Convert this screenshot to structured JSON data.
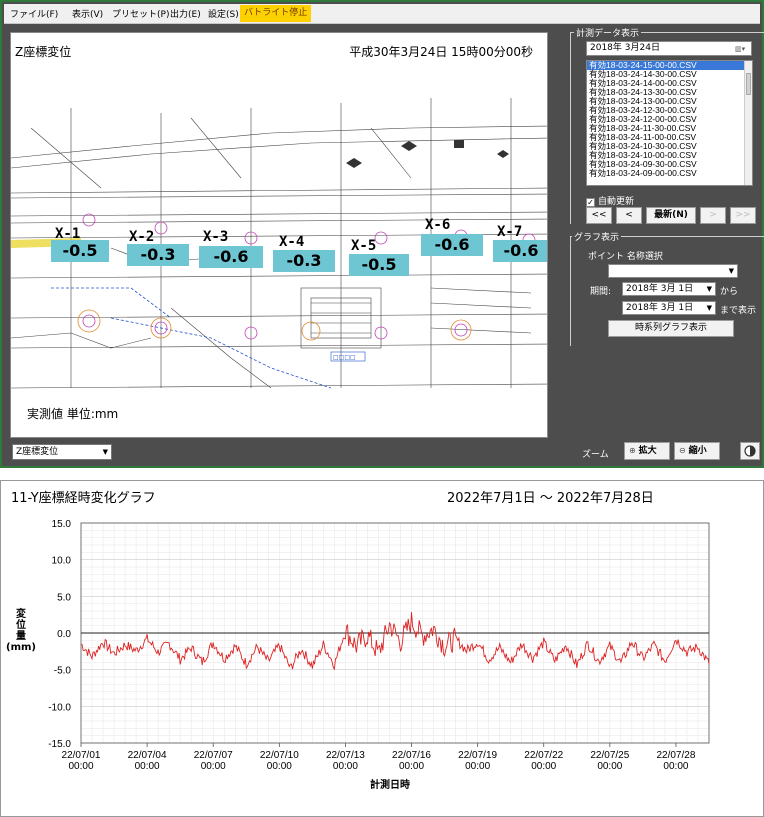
{
  "menu": {
    "file": "ファイル(F)",
    "view": "表示(V)",
    "preset": "プリセット(P)",
    "output": "出力(E)",
    "settings": "設定(S)",
    "backlight": "バトライト停止"
  },
  "canvas": {
    "title": "Z座標変位",
    "datetime": "平成30年3月24日 15時00分00秒",
    "unit": "実測値 単位:mm",
    "points": [
      {
        "label": "X-1",
        "value": "-0.5"
      },
      {
        "label": "X-2",
        "value": "-0.3"
      },
      {
        "label": "X-3",
        "value": "-0.6"
      },
      {
        "label": "X-4",
        "value": "-0.3"
      },
      {
        "label": "X-5",
        "value": "-0.5"
      },
      {
        "label": "X-6",
        "value": "-0.6"
      },
      {
        "label": "X-7",
        "value": "-0.6"
      }
    ]
  },
  "view_select": {
    "value": "Z座標変位"
  },
  "measure_panel": {
    "title": "計測データ表示",
    "date": "2018年 3月24日",
    "files": [
      "有効18-03-24-15-00-00.CSV",
      "有効18-03-24-14-30-00.CSV",
      "有効18-03-24-14-00-00.CSV",
      "有効18-03-24-13-30-00.CSV",
      "有効18-03-24-13-00-00.CSV",
      "有効18-03-24-12-30-00.CSV",
      "有効18-03-24-12-00-00.CSV",
      "有効18-03-24-11-30-00.CSV",
      "有効18-03-24-11-00-00.CSV",
      "有効18-03-24-10-30-00.CSV",
      "有効18-03-24-10-00-00.CSV",
      "有効18-03-24-09-30-00.CSV",
      "有効18-03-24-09-00-00.CSV"
    ],
    "auto_update": "自動更新",
    "nav": {
      "first": "<<",
      "prev": "<",
      "latest": "最新(N)",
      "next": ">",
      "last": ">>"
    }
  },
  "graph_panel": {
    "title": "グラフ表示",
    "point_label": "ポイント 名称選択",
    "period_label": "期間:",
    "from_date": "2018年 3月 1日",
    "from_suffix": "から",
    "to_date": "2018年 3月 1日",
    "to_suffix": "まで表示",
    "plot_button": "時系列グラフ表示"
  },
  "zoom": {
    "label": "ズーム",
    "in": "拡大",
    "out": "縮小"
  },
  "colors": {
    "accent": "#ffd100",
    "series": "#dd2222",
    "label_bg": "#6ec6d3"
  },
  "chart_data": {
    "type": "line",
    "title": "11-Y座標経時変化グラフ",
    "range_label": "2022年7月1日 〜 2022年7月28日",
    "ylabel": "変位量(mm)",
    "xlabel": "計測日時",
    "ylim": [
      -15,
      15
    ],
    "yticks": [
      "15.0",
      "10.0",
      "5.0",
      "0.0",
      "-5.0",
      "-10.0",
      "-15.0"
    ],
    "xticks": [
      {
        "date": "22/07/01",
        "time": "00:00"
      },
      {
        "date": "22/07/04",
        "time": "00:00"
      },
      {
        "date": "22/07/07",
        "time": "00:00"
      },
      {
        "date": "22/07/10",
        "time": "00:00"
      },
      {
        "date": "22/07/13",
        "time": "00:00"
      },
      {
        "date": "22/07/16",
        "time": "00:00"
      },
      {
        "date": "22/07/19",
        "time": "00:00"
      },
      {
        "date": "22/07/22",
        "time": "00:00"
      },
      {
        "date": "22/07/25",
        "time": "00:00"
      },
      {
        "date": "22/07/28",
        "time": "00:00"
      }
    ],
    "grid": true,
    "series": [
      {
        "x_days": [
          0,
          0.5,
          1,
          1.5,
          2,
          2.5,
          3,
          3.5,
          4,
          4.5,
          5,
          5.5,
          6,
          6.5,
          7,
          7.5,
          8,
          8.5,
          9,
          9.5,
          10,
          10.5,
          11,
          11.5,
          12,
          12.5,
          13,
          13.5,
          14,
          14.5,
          15,
          15.5,
          16,
          16.5,
          17,
          17.5,
          18,
          18.5,
          19,
          19.5,
          20,
          20.5,
          21,
          21.5,
          22,
          22.5,
          23,
          23.5,
          24,
          24.5,
          25,
          25.5,
          26,
          26.5,
          27,
          27.5,
          28,
          28.5
        ],
        "values": [
          -1.5,
          -3.2,
          -1.2,
          -2.8,
          -1.6,
          -2.4,
          -0.8,
          -2.6,
          -1.4,
          -3.6,
          -2.0,
          -4.0,
          -1.3,
          -3.5,
          -1.8,
          -4.2,
          -1.9,
          -3.9,
          -1.7,
          -4.8,
          -2.2,
          -4.5,
          -1.6,
          -4.3,
          0.4,
          -1.8,
          -0.3,
          -2.8,
          1.2,
          -1.2,
          1.6,
          -0.4,
          0.6,
          -1.8,
          -0.8,
          -2.4,
          -1.2,
          -3.6,
          -2.0,
          -4.0,
          -1.5,
          -3.4,
          -1.3,
          -3.8,
          -1.6,
          -4.4,
          -1.4,
          -3.9,
          -1.8,
          -4.1,
          -1.2,
          -3.5,
          -1.6,
          -3.8,
          -0.8,
          -2.6,
          -1.9,
          -4.2
        ]
      }
    ]
  }
}
